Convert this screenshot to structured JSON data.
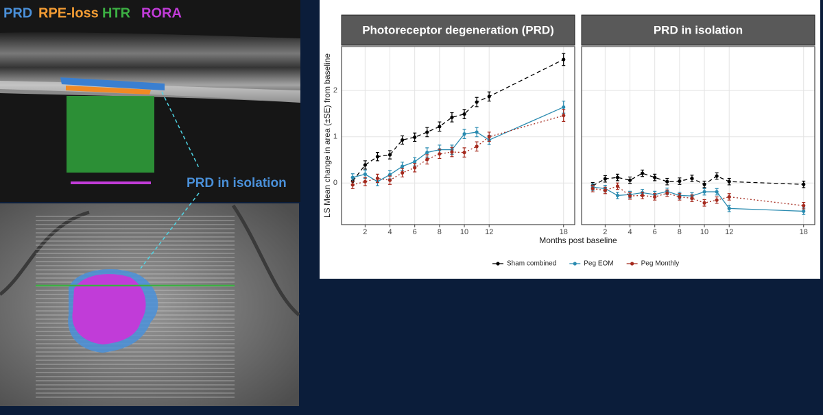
{
  "image": {
    "labels": [
      "PRD",
      "RPE-loss",
      "HTR",
      "RORA",
      "PRD in isolation"
    ]
  },
  "chart_data": [
    {
      "type": "line",
      "title": "Photoreceptor degeneration (PRD)",
      "xlabel": "Months post baseline",
      "ylabel": "LS Mean change in area (±SE) from baseline",
      "x": [
        1,
        2,
        3,
        4,
        5,
        6,
        7,
        8,
        9,
        10,
        11,
        12,
        18
      ],
      "xlim": [
        0.1,
        18.9
      ],
      "xticks": [
        2,
        4,
        6,
        8,
        10,
        12,
        18
      ],
      "ylim": [
        -0.9,
        2.95
      ],
      "yticks": [
        0,
        1,
        2
      ],
      "grid": true,
      "series": [
        {
          "name": "Sham combined",
          "color": "#000000",
          "line_style": "dashed",
          "values": [
            0.04,
            0.39,
            0.57,
            0.61,
            0.93,
            0.99,
            1.1,
            1.22,
            1.42,
            1.49,
            1.75,
            1.87,
            2.67
          ],
          "errors": [
            0.08,
            0.09,
            0.09,
            0.09,
            0.09,
            0.09,
            0.1,
            0.1,
            0.1,
            0.1,
            0.1,
            0.1,
            0.13
          ]
        },
        {
          "name": "Peg EOM",
          "color": "#2a8bb0",
          "line_style": "solid",
          "values": [
            0.12,
            0.19,
            0.03,
            0.18,
            0.36,
            0.46,
            0.66,
            0.72,
            0.72,
            1.06,
            1.1,
            0.93,
            1.64
          ],
          "errors": [
            0.08,
            0.09,
            0.09,
            0.09,
            0.09,
            0.09,
            0.1,
            0.1,
            0.1,
            0.1,
            0.1,
            0.1,
            0.13
          ]
        },
        {
          "name": "Peg Monthly",
          "color": "#a52a1e",
          "line_style": "dotted",
          "values": [
            -0.04,
            0.03,
            0.1,
            0.06,
            0.22,
            0.33,
            0.51,
            0.63,
            0.67,
            0.66,
            0.79,
            1.0,
            1.46
          ],
          "errors": [
            0.08,
            0.09,
            0.09,
            0.09,
            0.09,
            0.09,
            0.1,
            0.1,
            0.1,
            0.1,
            0.1,
            0.1,
            0.13
          ]
        }
      ]
    },
    {
      "type": "line",
      "title": "PRD in isolation",
      "x": [
        1,
        2,
        3,
        4,
        5,
        6,
        7,
        8,
        9,
        10,
        11,
        12,
        18
      ],
      "xlim": [
        0.1,
        18.9
      ],
      "xticks": [
        2,
        4,
        6,
        8,
        10,
        12,
        18
      ],
      "ylim": [
        -0.9,
        2.95
      ],
      "yticks": [
        0,
        1,
        2
      ],
      "grid": true,
      "series": [
        {
          "color": "#000000",
          "line_style": "dashed",
          "values": [
            -0.06,
            0.09,
            0.12,
            0.06,
            0.21,
            0.12,
            0.03,
            0.04,
            0.1,
            -0.03,
            0.15,
            0.03,
            -0.03
          ],
          "errors": [
            0.07,
            0.07,
            0.07,
            0.07,
            0.07,
            0.07,
            0.07,
            0.07,
            0.07,
            0.07,
            0.07,
            0.07,
            0.07
          ]
        },
        {
          "color": "#2a8bb0",
          "line_style": "solid",
          "values": [
            -0.09,
            -0.12,
            -0.27,
            -0.25,
            -0.21,
            -0.25,
            -0.18,
            -0.27,
            -0.28,
            -0.19,
            -0.19,
            -0.55,
            -0.61
          ],
          "errors": [
            0.07,
            0.07,
            0.07,
            0.07,
            0.07,
            0.07,
            0.07,
            0.07,
            0.07,
            0.07,
            0.07,
            0.07,
            0.07
          ]
        },
        {
          "color": "#a52a1e",
          "line_style": "dotted",
          "values": [
            -0.12,
            -0.16,
            -0.07,
            -0.28,
            -0.27,
            -0.3,
            -0.22,
            -0.3,
            -0.33,
            -0.43,
            -0.37,
            -0.3,
            -0.49
          ],
          "errors": [
            0.07,
            0.07,
            0.07,
            0.07,
            0.07,
            0.07,
            0.07,
            0.07,
            0.07,
            0.07,
            0.07,
            0.07,
            0.07
          ]
        }
      ]
    }
  ]
}
